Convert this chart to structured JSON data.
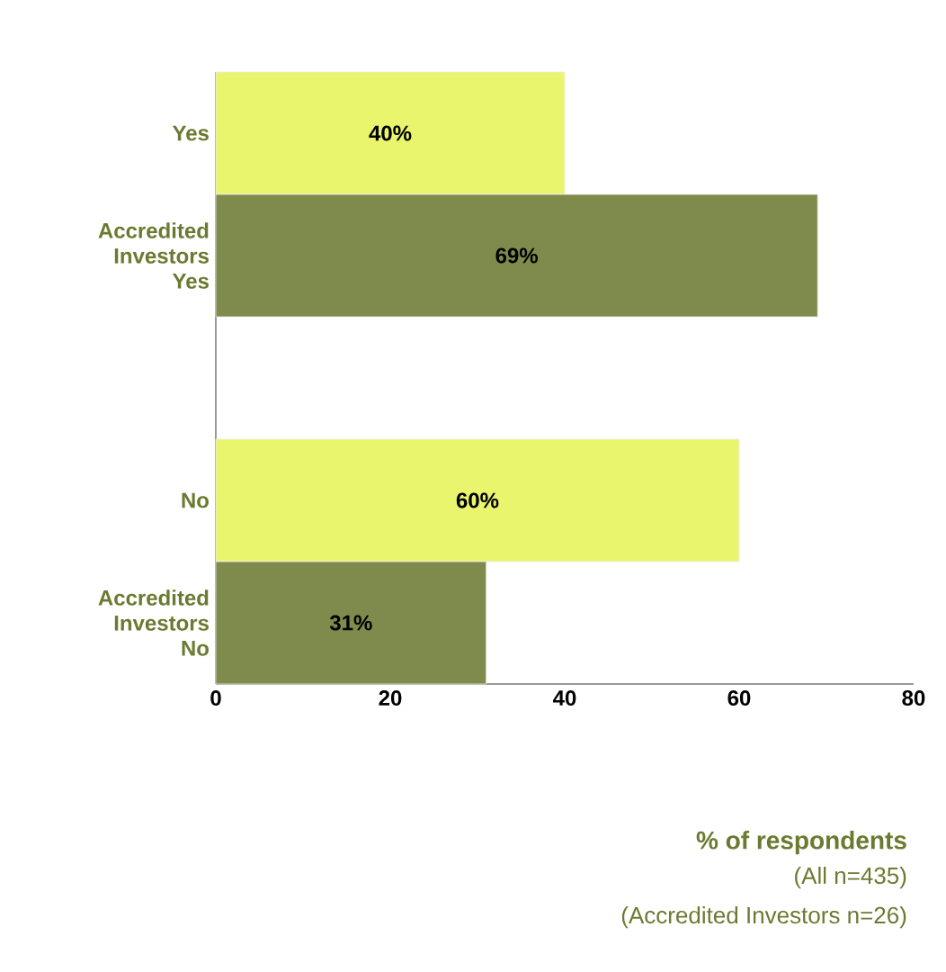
{
  "chart_data": {
    "type": "bar",
    "orientation": "horizontal",
    "categories": [
      "Yes",
      "Accredited Investors Yes",
      null,
      "No",
      "Accredited Investors No"
    ],
    "values": [
      40,
      69,
      null,
      60,
      31
    ],
    "colors": [
      "#eaf56e",
      "#7f8b4c",
      null,
      "#eaf56e",
      "#7f8b4c"
    ],
    "xlim": [
      0,
      80
    ],
    "xticks": [
      0,
      20,
      40,
      60,
      80
    ],
    "xlabel": "% of respondents",
    "annotations": [
      "(All n=435)",
      "(Accredited Investors n=26)"
    ],
    "value_labels": [
      "40%",
      "69%",
      null,
      "60%",
      "31%"
    ],
    "grid": false
  }
}
